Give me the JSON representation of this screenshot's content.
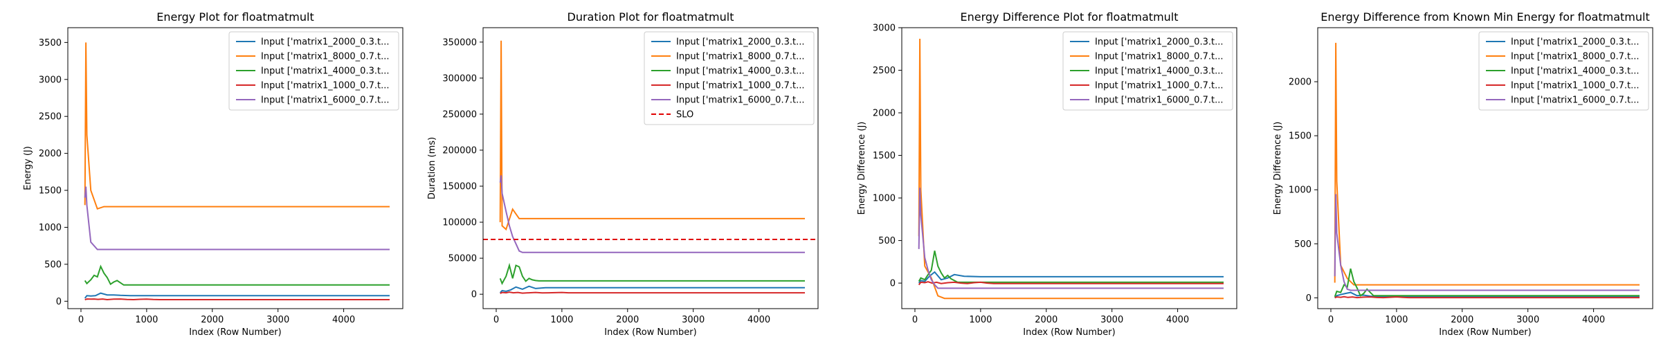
{
  "figure": {
    "colors": {
      "blue": "#1f77b4",
      "orange": "#ff7f0e",
      "green": "#2ca02c",
      "red": "#d62728",
      "purple": "#9467bd",
      "slo": "#e00000",
      "axis": "#000000"
    }
  },
  "chart_data": [
    {
      "type": "line",
      "title": "Energy Plot for floatmatmult",
      "xlabel": "Index (Row Number)",
      "ylabel": "Energy (J)",
      "xlim": [
        -200,
        4900
      ],
      "ylim": [
        -100,
        3700
      ],
      "xticks": [
        0,
        1000,
        2000,
        3000,
        4000
      ],
      "yticks": [
        0,
        500,
        1000,
        1500,
        2000,
        2500,
        3000,
        3500
      ],
      "legend_position": "top-right",
      "series": [
        {
          "name": "Input ['matrix1_2000_0.3.t...",
          "color": "blue",
          "x": [
            60,
            90,
            150,
            220,
            300,
            400,
            500,
            600,
            750,
            1000,
            2000,
            4700
          ],
          "y": [
            40,
            75,
            70,
            75,
            110,
            85,
            85,
            80,
            75,
            75,
            75,
            75
          ]
        },
        {
          "name": "Input ['matrix1_8000_0.7.t...",
          "color": "orange",
          "x": [
            60,
            75,
            90,
            150,
            250,
            350,
            400,
            4700
          ],
          "y": [
            1300,
            3500,
            2250,
            1500,
            1250,
            1280,
            1280,
            1280
          ]
        },
        {
          "name": "Input ['matrix1_4000_0.3.t...",
          "color": "green",
          "x": [
            60,
            90,
            150,
            200,
            250,
            300,
            350,
            400,
            450,
            500,
            550,
            600,
            650,
            700,
            4700
          ],
          "y": [
            280,
            240,
            290,
            350,
            330,
            470,
            380,
            320,
            230,
            260,
            280,
            250,
            220,
            220,
            220
          ]
        },
        {
          "name": "Input ['matrix1_1000_0.7.t...",
          "color": "red",
          "x": [
            60,
            90,
            150,
            200,
            260,
            330,
            400,
            500,
            600,
            700,
            800,
            900,
            1000,
            1100,
            1200,
            4700
          ],
          "y": [
            20,
            30,
            28,
            30,
            25,
            30,
            22,
            28,
            30,
            24,
            22,
            26,
            28,
            24,
            22,
            22
          ]
        },
        {
          "name": "Input ['matrix1_6000_0.7.t...",
          "color": "purple",
          "x": [
            60,
            75,
            90,
            150,
            250,
            300,
            400,
            4700
          ],
          "y": [
            1400,
            1550,
            1300,
            800,
            700,
            700,
            700,
            700
          ]
        }
      ]
    },
    {
      "type": "line",
      "title": "Duration Plot for floatmatmult",
      "xlabel": "Index (Row Number)",
      "ylabel": "Duration (ms)",
      "xlim": [
        -200,
        4900
      ],
      "ylim": [
        -20000,
        370000
      ],
      "xticks": [
        0,
        1000,
        2000,
        3000,
        4000
      ],
      "yticks": [
        0,
        50000,
        100000,
        150000,
        200000,
        250000,
        300000,
        350000
      ],
      "legend_position": "top-right",
      "slo": 76000,
      "series": [
        {
          "name": "Input ['matrix1_2000_0.3.t...",
          "color": "blue",
          "x": [
            60,
            90,
            150,
            220,
            300,
            400,
            500,
            600,
            750,
            1000,
            2000,
            4700
          ],
          "y": [
            2000,
            5000,
            4000,
            6000,
            10000,
            7000,
            11000,
            8000,
            9000,
            9000,
            9000,
            9000
          ]
        },
        {
          "name": "Input ['matrix1_8000_0.7.t...",
          "color": "orange",
          "x": [
            60,
            75,
            90,
            150,
            250,
            350,
            4700
          ],
          "y": [
            100000,
            352000,
            95000,
            90000,
            118000,
            105000,
            105000
          ]
        },
        {
          "name": "Input ['matrix1_4000_0.3.t...",
          "color": "green",
          "x": [
            60,
            90,
            150,
            200,
            250,
            300,
            350,
            400,
            450,
            500,
            550,
            600,
            650,
            700,
            4700
          ],
          "y": [
            22000,
            15000,
            25000,
            40000,
            22000,
            40000,
            38000,
            25000,
            18000,
            22000,
            20000,
            19000,
            18500,
            18500,
            18500
          ]
        },
        {
          "name": "Input ['matrix1_1000_0.7.t...",
          "color": "red",
          "x": [
            60,
            90,
            150,
            200,
            260,
            330,
            400,
            500,
            600,
            700,
            800,
            900,
            1000,
            1100,
            1200,
            4700
          ],
          "y": [
            1000,
            2500,
            2000,
            3000,
            2000,
            2500,
            1500,
            2000,
            2500,
            1800,
            2000,
            2200,
            2500,
            2000,
            2000,
            2000
          ]
        },
        {
          "name": "Input ['matrix1_6000_0.7.t...",
          "color": "purple",
          "x": [
            60,
            75,
            90,
            150,
            200,
            250,
            300,
            350,
            400,
            4700
          ],
          "y": [
            155000,
            165000,
            140000,
            115000,
            95000,
            80000,
            70000,
            60000,
            58000,
            58000
          ]
        }
      ]
    },
    {
      "type": "line",
      "title": "Energy Difference Plot for floatmatmult",
      "xlabel": "Index (Row Number)",
      "ylabel": "Energy Difference (J)",
      "xlim": [
        -200,
        4900
      ],
      "ylim": [
        -300,
        3000
      ],
      "xticks": [
        0,
        1000,
        2000,
        3000,
        4000
      ],
      "yticks": [
        0,
        500,
        1000,
        1500,
        2000,
        2500,
        3000
      ],
      "legend_position": "top-right",
      "series": [
        {
          "name": "Input ['matrix1_2000_0.3.t...",
          "color": "blue",
          "x": [
            60,
            90,
            150,
            220,
            300,
            400,
            500,
            600,
            750,
            1000,
            2000,
            4700
          ],
          "y": [
            0,
            30,
            20,
            80,
            130,
            40,
            60,
            100,
            80,
            75,
            75,
            75
          ]
        },
        {
          "name": "Input ['matrix1_8000_0.7.t...",
          "color": "orange",
          "x": [
            60,
            75,
            90,
            150,
            250,
            350,
            450,
            4700
          ],
          "y": [
            550,
            2870,
            1100,
            200,
            60,
            -150,
            -180,
            -180
          ]
        },
        {
          "name": "Input ['matrix1_4000_0.3.t...",
          "color": "green",
          "x": [
            60,
            90,
            150,
            200,
            250,
            300,
            350,
            400,
            450,
            500,
            550,
            600,
            650,
            700,
            4700
          ],
          "y": [
            20,
            60,
            40,
            100,
            150,
            380,
            200,
            120,
            60,
            90,
            50,
            30,
            10,
            10,
            10
          ]
        },
        {
          "name": "Input ['matrix1_1000_0.7.t...",
          "color": "red",
          "x": [
            60,
            90,
            150,
            200,
            260,
            330,
            400,
            500,
            600,
            700,
            800,
            900,
            1000,
            1100,
            1200,
            4700
          ],
          "y": [
            -20,
            10,
            5,
            15,
            0,
            10,
            -5,
            5,
            10,
            0,
            -5,
            5,
            10,
            0,
            -5,
            -5
          ]
        },
        {
          "name": "Input ['matrix1_6000_0.7.t...",
          "color": "purple",
          "x": [
            60,
            75,
            90,
            150,
            200,
            250,
            300,
            350,
            400,
            4700
          ],
          "y": [
            400,
            1120,
            800,
            300,
            150,
            40,
            -20,
            -60,
            -60,
            -60
          ]
        }
      ]
    },
    {
      "type": "line",
      "title": "Energy Difference from Known Min Energy for floatmatmult",
      "xlabel": "Index (Row Number)",
      "ylabel": "Energy Difference (J)",
      "xlim": [
        -200,
        4900
      ],
      "ylim": [
        -100,
        2500
      ],
      "xticks": [
        0,
        1000,
        2000,
        3000,
        4000
      ],
      "yticks": [
        0,
        500,
        1000,
        1500,
        2000
      ],
      "legend_position": "top-right",
      "series": [
        {
          "name": "Input ['matrix1_2000_0.3.t...",
          "color": "blue",
          "x": [
            60,
            90,
            150,
            220,
            300,
            400,
            500,
            600,
            750,
            1000,
            2000,
            4700
          ],
          "y": [
            0,
            20,
            30,
            40,
            50,
            20,
            25,
            15,
            10,
            10,
            10,
            10
          ]
        },
        {
          "name": "Input ['matrix1_8000_0.7.t...",
          "color": "orange",
          "x": [
            60,
            75,
            90,
            150,
            250,
            350,
            450,
            4700
          ],
          "y": [
            140,
            2360,
            1080,
            300,
            180,
            120,
            120,
            120
          ]
        },
        {
          "name": "Input ['matrix1_4000_0.3.t...",
          "color": "green",
          "x": [
            60,
            90,
            150,
            200,
            250,
            300,
            350,
            400,
            450,
            500,
            550,
            600,
            650,
            700,
            4700
          ],
          "y": [
            10,
            60,
            50,
            120,
            100,
            270,
            150,
            90,
            20,
            40,
            80,
            50,
            20,
            20,
            20
          ]
        },
        {
          "name": "Input ['matrix1_1000_0.7.t...",
          "color": "red",
          "x": [
            60,
            90,
            150,
            200,
            260,
            330,
            400,
            500,
            600,
            700,
            800,
            900,
            1000,
            1100,
            1200,
            4700
          ],
          "y": [
            0,
            8,
            5,
            10,
            4,
            8,
            2,
            6,
            8,
            3,
            2,
            5,
            8,
            4,
            2,
            2
          ]
        },
        {
          "name": "Input ['matrix1_6000_0.7.t...",
          "color": "purple",
          "x": [
            60,
            75,
            90,
            150,
            200,
            250,
            300,
            350,
            400,
            4700
          ],
          "y": [
            200,
            960,
            600,
            300,
            150,
            80,
            70,
            70,
            70,
            70
          ]
        }
      ]
    }
  ],
  "slo_label": "SLO"
}
